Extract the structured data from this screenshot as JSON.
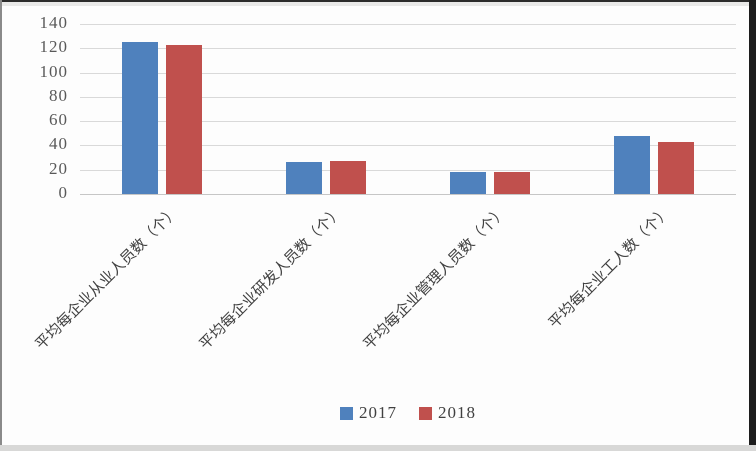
{
  "chart_data": {
    "type": "bar",
    "categories": [
      "平均每企业从业人员数（个）",
      "平均每企业研发人员数（个）",
      "平均每企业管理人员数（个）",
      "平均每企业工人数（个）"
    ],
    "series": [
      {
        "name": "2017",
        "color": "#4f81bd",
        "values": [
          125,
          26,
          18,
          48
        ]
      },
      {
        "name": "2018",
        "color": "#c0504d",
        "values": [
          123,
          27,
          18,
          43
        ]
      }
    ],
    "xlabel": "",
    "ylabel": "",
    "ylim": [
      0,
      140
    ],
    "ytick_step": 20,
    "ytick_labels": [
      "0",
      "20",
      "40",
      "60",
      "80",
      "100",
      "120",
      "140"
    ],
    "grid": true,
    "legend_position": "bottom",
    "legend_labels": [
      "2017",
      "2018"
    ]
  },
  "colors": {
    "series_2017": "#4f81bd",
    "series_2018": "#c0504d",
    "gridline": "#d9d9d9",
    "tick_text": "#595959",
    "label_text": "#404040",
    "background": "#fdfdfd"
  }
}
